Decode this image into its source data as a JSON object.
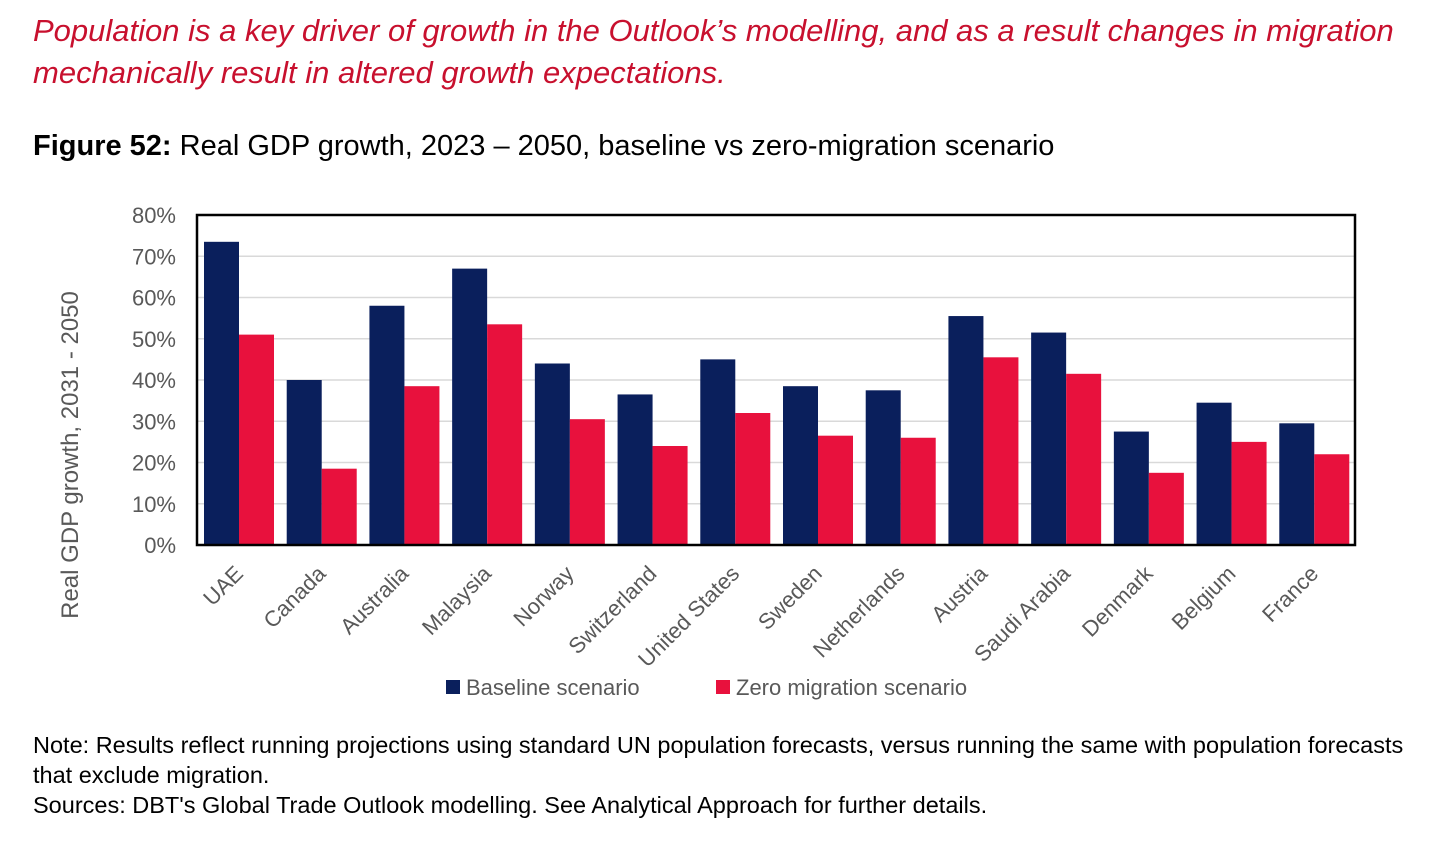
{
  "headline": "Population is a key driver of growth in the Outlook’s modelling, and as a result changes in migration mechanically result in altered growth expectations.",
  "figure": {
    "number": "Figure 52:",
    "title": "Real GDP growth, 2023 – 2050, baseline vs zero-migration scenario"
  },
  "chart_data": {
    "type": "bar",
    "title": "Real GDP growth, 2023 – 2050, baseline vs zero-migration scenario",
    "ylabel": "Real GDP growth, 2031 - 2050",
    "xlabel": "",
    "ylim": [
      0,
      80
    ],
    "yticks": [
      "0%",
      "10%",
      "20%",
      "30%",
      "40%",
      "50%",
      "60%",
      "70%",
      "80%"
    ],
    "ytick_values": [
      0,
      10,
      20,
      30,
      40,
      50,
      60,
      70,
      80
    ],
    "grid": true,
    "legend_position": "bottom",
    "categories": [
      "UAE",
      "Canada",
      "Australia",
      "Malaysia",
      "Norway",
      "Switzerland",
      "United States",
      "Sweden",
      "Netherlands",
      "Austria",
      "Saudi Arabia",
      "Denmark",
      "Belgium",
      "France"
    ],
    "series": [
      {
        "name": "Baseline scenario",
        "color": "#0a1f5c",
        "values": [
          73.5,
          40,
          58,
          67,
          44,
          36.5,
          45,
          38.5,
          37.5,
          55.5,
          51.5,
          27.5,
          34.5,
          29.5
        ]
      },
      {
        "name": "Zero migration scenario",
        "color": "#e8113d",
        "values": [
          51,
          18.5,
          38.5,
          53.5,
          30.5,
          24,
          32,
          26.5,
          26,
          45.5,
          41.5,
          17.5,
          25,
          22
        ]
      }
    ]
  },
  "notes": {
    "note": "Note: Results reflect running projections using standard UN population forecasts, versus running the same with population forecasts that exclude migration.",
    "sources": "Sources: DBT's Global Trade Outlook modelling. See Analytical Approach for further details."
  }
}
